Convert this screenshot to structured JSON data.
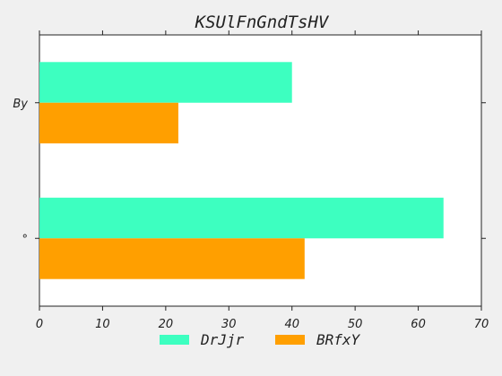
{
  "chart_data": {
    "type": "bar",
    "orientation": "horizontal",
    "title": "KSUlFnGndTsHV",
    "xlabel": "",
    "ylabel": "",
    "categories": [
      "By",
      "°"
    ],
    "series": [
      {
        "name": "DrJjr",
        "values": [
          40,
          64
        ],
        "color": "#3dffc0"
      },
      {
        "name": "BRfxY",
        "values": [
          22,
          42
        ],
        "color": "#ff9f00"
      }
    ],
    "xlim": [
      0,
      70
    ],
    "xticks": [
      "0",
      "10",
      "20",
      "30",
      "40",
      "50",
      "60",
      "70"
    ],
    "grid": false,
    "legend_position": "bottom"
  }
}
